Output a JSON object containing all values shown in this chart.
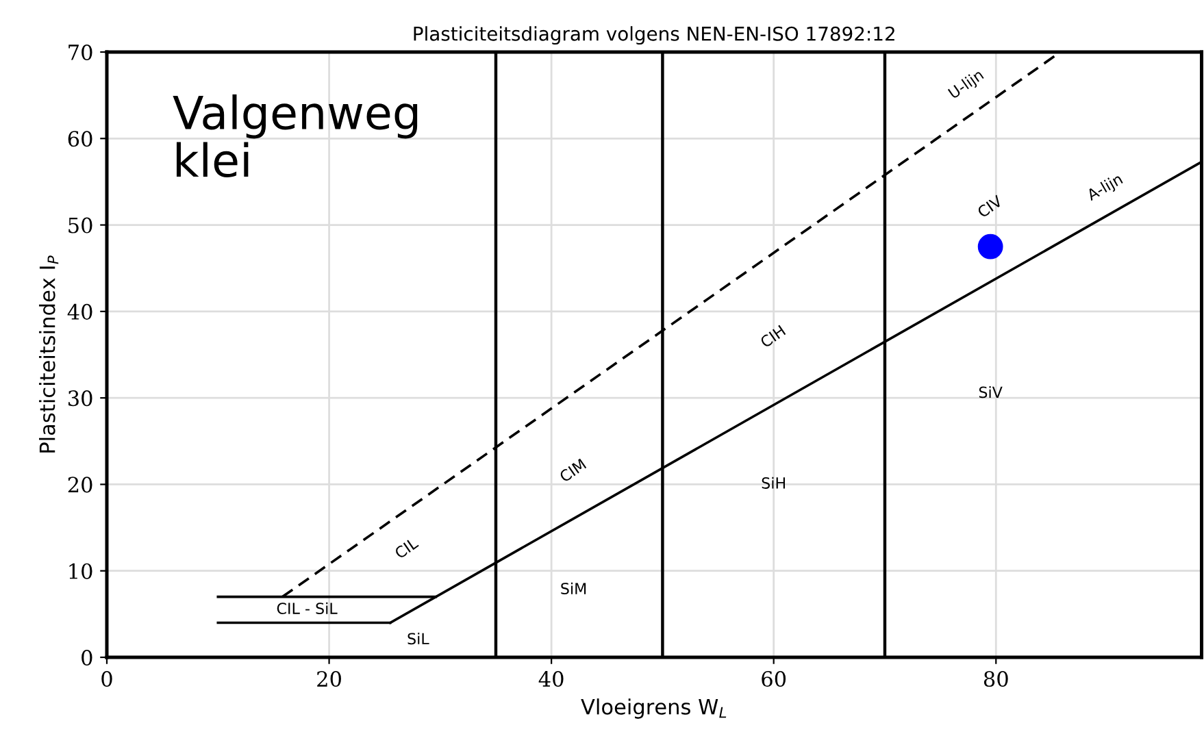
{
  "chart_data": {
    "type": "line",
    "title": "Plasticiteitsdiagram volgens NEN-EN-ISO 17892:12",
    "xlabel": "Vloeigrens W$_{L}$",
    "ylabel": "Plasticiteitsindex I$_{P}$",
    "series": [
      {
        "name": "U-lijn",
        "color": "#000000",
        "line_style": "dashed",
        "x": [
          15.8,
          85.8
        ],
        "values": [
          7,
          70
        ]
      },
      {
        "name": "A-lijn",
        "color": "#000000",
        "line_style": "solid",
        "x": [
          25.5,
          98.5
        ],
        "values": [
          4,
          57.3
        ]
      },
      {
        "color": "#000000",
        "line_style": "solid",
        "x": [
          10,
          29.6
        ],
        "values": [
          7,
          7
        ]
      },
      {
        "color": "#000000",
        "line_style": "solid",
        "x": [
          10,
          25.5
        ],
        "values": [
          4,
          4
        ]
      },
      {
        "type": "scatter",
        "color": "#0000ff",
        "marker": "circle",
        "x": [
          79.5
        ],
        "values": [
          47.5
        ]
      }
    ],
    "ref_lines": [
      {
        "axis": "x",
        "value": 35,
        "color": "#000000"
      },
      {
        "axis": "x",
        "value": 50,
        "color": "#000000"
      },
      {
        "axis": "x",
        "value": 70,
        "color": "#000000"
      }
    ],
    "annotations": [
      "CIL",
      "CIM",
      "CIH",
      "CIV",
      "CIL - SiL",
      "SiL",
      "SiM",
      "SiH",
      "SiV",
      "Valgenweg\nklei"
    ],
    "xlim": [
      0,
      98.5
    ],
    "ylim": [
      0,
      70
    ],
    "xticks": [
      0,
      20,
      40,
      60,
      80
    ],
    "yticks": [
      0,
      10,
      20,
      30,
      40,
      50,
      60,
      70
    ],
    "grid": true,
    "legend": false
  }
}
